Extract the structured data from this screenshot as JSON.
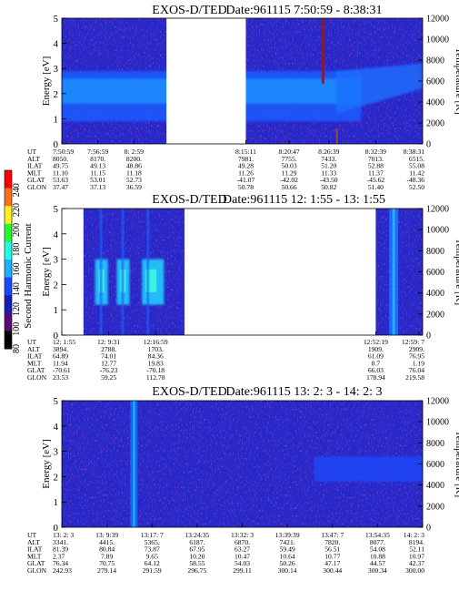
{
  "instrument": "EXOS-D/TED",
  "colorbar": {
    "label": "Second Harmonic Current",
    "ticks": [
      "240",
      "220",
      "200",
      "180",
      "160",
      "140",
      "120",
      "100",
      "80"
    ],
    "colors": [
      "#000000",
      "#5a0a78",
      "#1420b4",
      "#1c48ff",
      "#1ab2ff",
      "#20ffe0",
      "#20ff30",
      "#fff020",
      "#ff7018",
      "#ff0000"
    ]
  },
  "ylabel_left": "Energy [eV]",
  "ylabel_right": "Temperature [K]",
  "yticks_left": [
    "0",
    "1",
    "2",
    "3",
    "4",
    "5"
  ],
  "yticks_right": [
    "0",
    "2000",
    "4000",
    "6000",
    "8000",
    "10000",
    "12000"
  ],
  "row_labels": [
    "UT",
    "ALT",
    "ILAT",
    "MLT",
    "GLAT",
    "GLON"
  ],
  "chart_data": [
    {
      "type": "heatmap",
      "title": "Date:961115  7:50:59 - 8:38:31",
      "ylim": [
        0,
        5
      ],
      "y2lim": [
        0,
        12000
      ],
      "data_gaps": [
        [
          0.29,
          0.51
        ]
      ],
      "features": {
        "band_center_ev": 2.1,
        "band_low_ev": 0.9,
        "band_high_ev": 2.9,
        "band_end_frac": 0.83,
        "band_rise_to_ev": 2.6
      },
      "columns": [
        {
          "UT": "7:50:59",
          "ALT": "8050.",
          "ILAT": "49.75",
          "MLT": "11.10",
          "GLAT": "53.63",
          "GLON": "37.47"
        },
        {
          "UT": "7:56:59",
          "ALT": "8170.",
          "ILAT": "49.13",
          "MLT": "11.15",
          "GLAT": "53.01",
          "GLON": "37.13"
        },
        {
          "UT": "8: 2:59",
          "ALT": "8200.",
          "ILAT": "48.86",
          "MLT": "11.18",
          "GLAT": "52.73",
          "GLON": "36.59"
        },
        {
          "UT": "8:15:11",
          "ALT": "7981.",
          "ILAT": "49.28",
          "MLT": "11.26",
          "GLAT": "-41.07",
          "GLON": "50.78"
        },
        {
          "UT": "8:20:47",
          "ALT": "7755.",
          "ILAT": "50.03",
          "MLT": "11.29",
          "GLAT": "-42.02",
          "GLON": "50.66"
        },
        {
          "UT": "8:26:39",
          "ALT": "7433.",
          "ILAT": "51.20",
          "MLT": "11.33",
          "GLAT": "-43.50",
          "GLON": "50.82"
        },
        {
          "UT": "8:32:39",
          "ALT": "7013.",
          "ILAT": "52.88",
          "MLT": "11.37",
          "GLAT": "-45.62",
          "GLON": "51.40"
        },
        {
          "UT": "8:38:31",
          "ALT": "6515.",
          "ILAT": "55.08",
          "MLT": "11.42",
          "GLAT": "-48.36",
          "GLON": "52.50"
        }
      ]
    },
    {
      "type": "heatmap",
      "title": "Date:961115  12: 1:55 - 13: 1:55",
      "ylim": [
        0,
        5
      ],
      "y2lim": [
        0,
        12000
      ],
      "data_gaps": [
        [
          0.0,
          0.06
        ],
        [
          0.34,
          0.87
        ]
      ],
      "features": {
        "bursts_x_frac": [
          0.11,
          0.17,
          0.24
        ],
        "burst_band_ev": [
          1.2,
          3.0
        ],
        "line_x_frac": 0.92
      },
      "columns": [
        {
          "UT": "12: 1:55",
          "ALT": "3894.",
          "ILAT": "64.89",
          "MLT": "11.94",
          "GLAT": "-70.61",
          "GLON": "23.53"
        },
        {
          "UT": "12: 9:31",
          "ALT": "2788.",
          "ILAT": "74.01",
          "MLT": "12.77",
          "GLAT": "-76.23",
          "GLON": "59.25"
        },
        {
          "UT": "12:16:59",
          "ALT": "1703.",
          "ILAT": "84.36",
          "MLT": "19.83",
          "GLAT": "-70.18",
          "GLON": "112.78"
        },
        {
          "UT": "12:52:19",
          "ALT": "1909.",
          "ILAT": "61.09",
          "MLT": "0.7",
          "GLAT": "66.03",
          "GLON": "178.94"
        },
        {
          "UT": "12:59: 7",
          "ALT": "2909.",
          "ILAT": "76.95",
          "MLT": "1.19",
          "GLAT": "76.04",
          "GLON": "219.58"
        }
      ]
    },
    {
      "type": "heatmap",
      "title": "Date:961115  13: 2: 3 - 14: 2: 3",
      "ylim": [
        0,
        5
      ],
      "y2lim": [
        0,
        12000
      ],
      "data_gaps": [],
      "features": {
        "line_x_frac": 0.2,
        "patch_x_frac": [
          0.7,
          1.0
        ],
        "patch_band_ev": [
          1.8,
          2.8
        ]
      },
      "columns": [
        {
          "UT": "13: 2: 3",
          "ALT": "3341.",
          "ILAT": "81.39",
          "MLT": "2.37",
          "GLAT": "76.34",
          "GLON": "242.93"
        },
        {
          "UT": "13: 9:39",
          "ALT": "4415.",
          "ILAT": "80.84",
          "MLT": "7.89",
          "GLAT": "70.75",
          "GLON": "279.14"
        },
        {
          "UT": "13:17: 7",
          "ALT": "5365.",
          "ILAT": "73.87",
          "MLT": "9.65",
          "GLAT": "64.12",
          "GLON": "291.59"
        },
        {
          "UT": "13:24:35",
          "ALT": "6187.",
          "ILAT": "67.95",
          "MLT": "10.20",
          "GLAT": "58.55",
          "GLON": "296.75"
        },
        {
          "UT": "13:32: 3",
          "ALT": "6870.",
          "ILAT": "63.27",
          "MLT": "10.47",
          "GLAT": "54.03",
          "GLON": "299.11"
        },
        {
          "UT": "13:39:39",
          "ALT": "7421.",
          "ILAT": "59.49",
          "MLT": "10.64",
          "GLAT": "50.26",
          "GLON": "300.14"
        },
        {
          "UT": "13:47: 7",
          "ALT": "7820.",
          "ILAT": "56.51",
          "MLT": "10.77",
          "GLAT": "47.17",
          "GLON": "300.44"
        },
        {
          "UT": "13:54:35",
          "ALT": "8077.",
          "ILAT": "54.08",
          "MLT": "10.88",
          "GLAT": "44.57",
          "GLON": "300.34"
        },
        {
          "UT": "14: 2: 3",
          "ALT": "8194.",
          "ILAT": "52.11",
          "MLT": "10.97",
          "GLAT": "42.37",
          "GLON": "300.00"
        }
      ]
    }
  ]
}
